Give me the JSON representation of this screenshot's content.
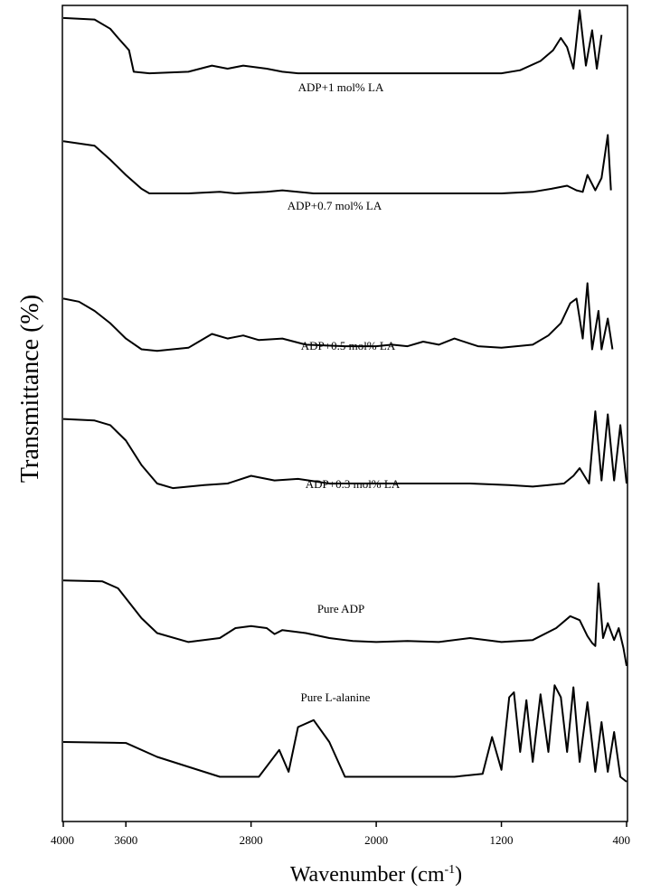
{
  "chart_data": {
    "type": "line",
    "title": "",
    "xlabel": "Wavenumber (cm-1)",
    "xlabel_main": "Wavenumber (cm",
    "xlabel_sup": "-1",
    "xlabel_close": ")",
    "ylabel": "Transmittance (%)",
    "xlim": [
      4000,
      400
    ],
    "x_reversed": true,
    "y_units": "relative (stacked, offset traces)",
    "ylim": [
      0,
      1
    ],
    "grid": false,
    "legend": "none (traces labelled inline)",
    "colors": {
      "trace": "#000000",
      "axis": "#000000",
      "background": "#ffffff"
    },
    "xticks": [
      4000,
      3600,
      2800,
      2000,
      1200,
      400
    ],
    "series": [
      {
        "name": "ADP+1 mol% LA",
        "x": [
          4000,
          3800,
          3700,
          3650,
          3580,
          3550,
          3450,
          3200,
          3050,
          2950,
          2850,
          2700,
          2600,
          2500,
          2300,
          2000,
          1700,
          1400,
          1200,
          1080,
          950,
          870,
          820,
          780,
          740,
          700,
          660,
          620,
          590,
          560
        ],
        "y": [
          0.93,
          0.92,
          0.86,
          0.8,
          0.72,
          0.58,
          0.57,
          0.58,
          0.62,
          0.6,
          0.62,
          0.6,
          0.58,
          0.57,
          0.57,
          0.57,
          0.57,
          0.57,
          0.57,
          0.59,
          0.65,
          0.72,
          0.8,
          0.74,
          0.6,
          0.98,
          0.62,
          0.85,
          0.6,
          0.82
        ]
      },
      {
        "name": "ADP+0.7 mol% LA",
        "x": [
          4000,
          3800,
          3700,
          3600,
          3500,
          3450,
          3200,
          3000,
          2900,
          2700,
          2600,
          2400,
          2000,
          1600,
          1200,
          1000,
          880,
          780,
          720,
          680,
          650,
          600,
          560,
          520,
          500
        ],
        "y": [
          0.94,
          0.91,
          0.82,
          0.72,
          0.63,
          0.6,
          0.6,
          0.61,
          0.6,
          0.61,
          0.62,
          0.6,
          0.6,
          0.6,
          0.6,
          0.61,
          0.63,
          0.65,
          0.62,
          0.61,
          0.72,
          0.62,
          0.7,
          0.98,
          0.62
        ]
      },
      {
        "name": "ADP+0.5 mol% LA",
        "x": [
          4000,
          3900,
          3800,
          3700,
          3600,
          3500,
          3400,
          3200,
          3050,
          2950,
          2850,
          2750,
          2600,
          2450,
          2200,
          2000,
          1900,
          1800,
          1700,
          1600,
          1500,
          1350,
          1200,
          1000,
          900,
          820,
          760,
          720,
          700,
          680,
          650,
          620,
          580,
          560,
          520,
          490
        ],
        "y": [
          0.88,
          0.86,
          0.8,
          0.72,
          0.62,
          0.55,
          0.54,
          0.56,
          0.65,
          0.62,
          0.64,
          0.61,
          0.62,
          0.58,
          0.57,
          0.57,
          0.58,
          0.57,
          0.6,
          0.58,
          0.62,
          0.57,
          0.56,
          0.58,
          0.64,
          0.72,
          0.85,
          0.88,
          0.75,
          0.62,
          0.98,
          0.55,
          0.8,
          0.55,
          0.75,
          0.55
        ]
      },
      {
        "name": "ADP+0.3 mol% LA",
        "x": [
          4000,
          3800,
          3700,
          3600,
          3500,
          3400,
          3300,
          3100,
          2950,
          2800,
          2650,
          2500,
          2300,
          2000,
          1700,
          1400,
          1150,
          1000,
          900,
          800,
          740,
          700,
          670,
          640,
          600,
          560,
          520,
          480,
          440,
          400
        ],
        "y": [
          0.92,
          0.91,
          0.88,
          0.78,
          0.62,
          0.5,
          0.47,
          0.49,
          0.5,
          0.55,
          0.52,
          0.53,
          0.5,
          0.5,
          0.5,
          0.5,
          0.49,
          0.48,
          0.49,
          0.5,
          0.55,
          0.6,
          0.55,
          0.5,
          0.97,
          0.52,
          0.95,
          0.52,
          0.88,
          0.5
        ]
      },
      {
        "name": "Pure ADP",
        "x": [
          4000,
          3750,
          3650,
          3500,
          3400,
          3200,
          3000,
          2900,
          2800,
          2700,
          2650,
          2600,
          2450,
          2300,
          2150,
          2000,
          1800,
          1600,
          1400,
          1200,
          1000,
          850,
          760,
          700,
          650,
          620,
          600,
          580,
          550,
          520,
          480,
          450,
          420,
          400
        ],
        "y": [
          0.98,
          0.97,
          0.9,
          0.6,
          0.45,
          0.36,
          0.4,
          0.5,
          0.52,
          0.5,
          0.44,
          0.48,
          0.45,
          0.4,
          0.37,
          0.36,
          0.37,
          0.36,
          0.4,
          0.36,
          0.38,
          0.5,
          0.62,
          0.58,
          0.42,
          0.35,
          0.32,
          0.95,
          0.4,
          0.55,
          0.38,
          0.5,
          0.3,
          0.12
        ]
      },
      {
        "name": "Pure L-alanine",
        "x": [
          4000,
          3600,
          3400,
          3200,
          3000,
          2850,
          2750,
          2620,
          2560,
          2500,
          2400,
          2300,
          2200,
          2100,
          2000,
          1800,
          1500,
          1320,
          1260,
          1200,
          1150,
          1120,
          1080,
          1040,
          1000,
          950,
          900,
          860,
          820,
          780,
          740,
          700,
          650,
          600,
          560,
          520,
          480,
          440,
          400
        ],
        "y": [
          0.4,
          0.39,
          0.25,
          0.15,
          0.05,
          0.05,
          0.05,
          0.32,
          0.1,
          0.55,
          0.62,
          0.4,
          0.05,
          0.05,
          0.05,
          0.05,
          0.05,
          0.08,
          0.45,
          0.12,
          0.85,
          0.9,
          0.3,
          0.82,
          0.2,
          0.88,
          0.3,
          0.97,
          0.85,
          0.3,
          0.95,
          0.2,
          0.8,
          0.1,
          0.6,
          0.1,
          0.5,
          0.05,
          0.0
        ]
      }
    ]
  }
}
